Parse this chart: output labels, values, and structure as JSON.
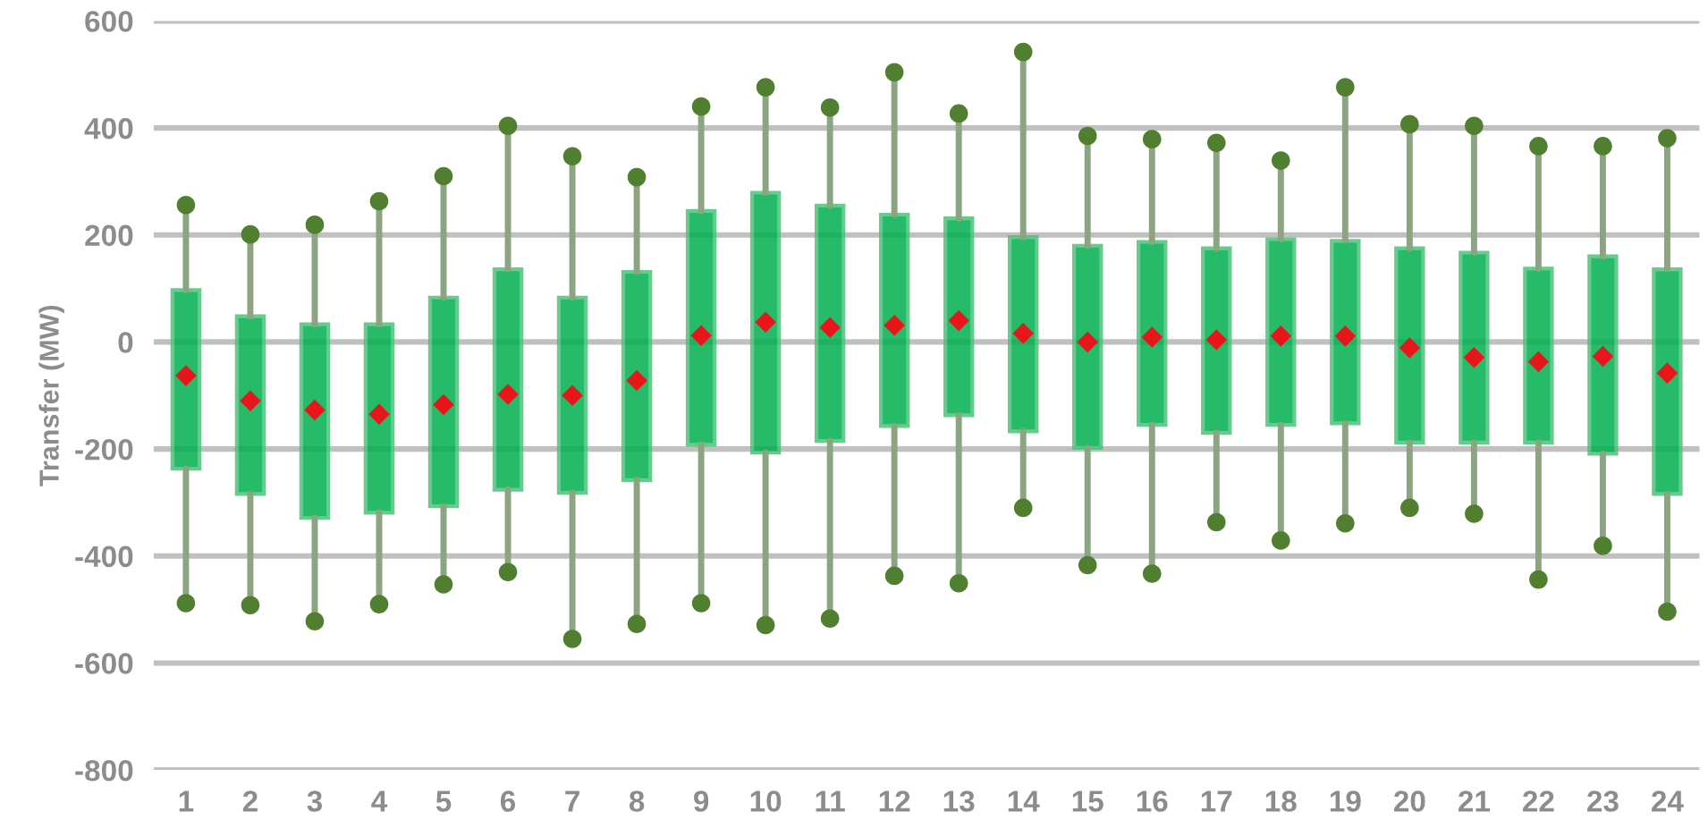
{
  "chart_data": {
    "type": "box",
    "ylabel": "Transfer (MW)",
    "categories": [
      "1",
      "2",
      "3",
      "4",
      "5",
      "6",
      "7",
      "8",
      "9",
      "10",
      "11",
      "12",
      "13",
      "14",
      "15",
      "16",
      "17",
      "18",
      "19",
      "20",
      "21",
      "22",
      "23",
      "24"
    ],
    "ylim": [
      -800,
      600
    ],
    "yticks": [
      -800,
      -600,
      -400,
      -200,
      0,
      200,
      400,
      600
    ],
    "grid": "y",
    "series": [
      {
        "color": "#00b050",
        "boxes": [
          {
            "low": -488,
            "q1": -237,
            "q3": 97,
            "high": 256,
            "mean": -63
          },
          {
            "low": -492,
            "q1": -284,
            "q3": 48,
            "high": 201,
            "mean": -110
          },
          {
            "low": -522,
            "q1": -329,
            "q3": 33,
            "high": 219,
            "mean": -127
          },
          {
            "low": -490,
            "q1": -319,
            "q3": 33,
            "high": 263,
            "mean": -135
          },
          {
            "low": -453,
            "q1": -307,
            "q3": 83,
            "high": 310,
            "mean": -117
          },
          {
            "low": -430,
            "q1": -276,
            "q3": 136,
            "high": 404,
            "mean": -98
          },
          {
            "low": -555,
            "q1": -282,
            "q3": 83,
            "high": 347,
            "mean": -100
          },
          {
            "low": -527,
            "q1": -258,
            "q3": 131,
            "high": 308,
            "mean": -72
          },
          {
            "low": -488,
            "q1": -192,
            "q3": 245,
            "high": 440,
            "mean": 12
          },
          {
            "low": -529,
            "q1": -207,
            "q3": 279,
            "high": 476,
            "mean": 37
          },
          {
            "low": -517,
            "q1": -185,
            "q3": 255,
            "high": 438,
            "mean": 27
          },
          {
            "low": -437,
            "q1": -157,
            "q3": 238,
            "high": 504,
            "mean": 31
          },
          {
            "low": -451,
            "q1": -137,
            "q3": 231,
            "high": 427,
            "mean": 40
          },
          {
            "low": -310,
            "q1": -167,
            "q3": 196,
            "high": 542,
            "mean": 16
          },
          {
            "low": -417,
            "q1": -198,
            "q3": 180,
            "high": 385,
            "mean": 0
          },
          {
            "low": -433,
            "q1": -155,
            "q3": 187,
            "high": 379,
            "mean": 9
          },
          {
            "low": -337,
            "q1": -170,
            "q3": 175,
            "high": 372,
            "mean": 4
          },
          {
            "low": -371,
            "q1": -155,
            "q3": 192,
            "high": 339,
            "mean": 11
          },
          {
            "low": -339,
            "q1": -152,
            "q3": 189,
            "high": 476,
            "mean": 11
          },
          {
            "low": -310,
            "q1": -188,
            "q3": 175,
            "high": 407,
            "mean": -11
          },
          {
            "low": -321,
            "q1": -188,
            "q3": 167,
            "high": 404,
            "mean": -29
          },
          {
            "low": -444,
            "q1": -188,
            "q3": 137,
            "high": 366,
            "mean": -37
          },
          {
            "low": -381,
            "q1": -209,
            "q3": 160,
            "high": 366,
            "mean": -27
          },
          {
            "low": -504,
            "q1": -284,
            "q3": 136,
            "high": 381,
            "mean": -58
          }
        ]
      },
      {
        "type": "scatter",
        "color": "#4f7f2f",
        "marker": "circle",
        "x": [
          "1",
          "2",
          "3",
          "4",
          "5",
          "6",
          "7",
          "8",
          "9",
          "10",
          "11",
          "12",
          "13",
          "14",
          "15",
          "16",
          "17",
          "18",
          "19",
          "20",
          "21",
          "22",
          "23",
          "24",
          "1",
          "2",
          "3",
          "4",
          "5",
          "6",
          "7",
          "8",
          "9",
          "10",
          "11",
          "12",
          "13",
          "14",
          "15",
          "16",
          "17",
          "18",
          "19",
          "20",
          "21",
          "22",
          "23",
          "24"
        ],
        "values": [
          -488,
          -492,
          -522,
          -490,
          -453,
          -430,
          -555,
          -527,
          -488,
          -529,
          -517,
          -437,
          -451,
          -310,
          -417,
          -433,
          -337,
          -371,
          -339,
          -310,
          -321,
          -444,
          -381,
          -504,
          256,
          201,
          219,
          263,
          310,
          404,
          347,
          308,
          440,
          476,
          438,
          504,
          427,
          542,
          385,
          379,
          372,
          339,
          476,
          407,
          404,
          366,
          366,
          381
        ]
      }
    ]
  }
}
